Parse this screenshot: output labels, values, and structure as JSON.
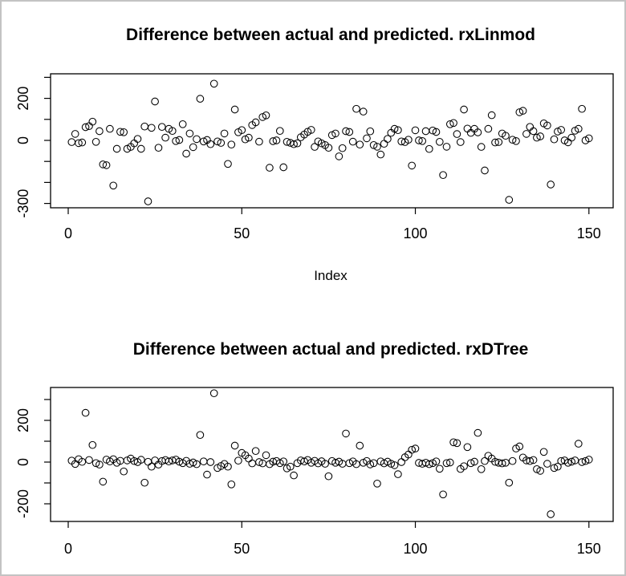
{
  "window": {
    "background": "#ffffff",
    "frame_border_color": "#c3c3c3",
    "foreground_color": "#000000"
  },
  "chart_data": [
    {
      "type": "scatter",
      "title": "Difference between actual and predicted. rxLinmod",
      "xlabel": "Index",
      "ylabel": "",
      "marker": "open-circle",
      "point_color": "#000000",
      "grid": false,
      "legend": "none",
      "x_description": "observation index 1..150",
      "xlim": [
        -5,
        156
      ],
      "ylim": [
        -320,
        317
      ],
      "x_ticks": [
        0,
        50,
        100,
        150
      ],
      "y_ticks": [
        {
          "v": 300,
          "label": ""
        },
        {
          "v": 200,
          "label": "200"
        },
        {
          "v": 100,
          "label": ""
        },
        {
          "v": 0,
          "label": "0"
        },
        {
          "v": -100,
          "label": ""
        },
        {
          "v": -200,
          "label": ""
        },
        {
          "v": -300,
          "label": "-300"
        }
      ],
      "values": [
        -8,
        31,
        -13,
        -10,
        63,
        68,
        89,
        -7,
        44,
        -114,
        -118,
        55,
        -215,
        -40,
        41,
        39,
        -40,
        -31,
        -14,
        7,
        -40,
        66,
        -290,
        60,
        185,
        -35,
        64,
        13,
        55,
        45,
        -3,
        2,
        77,
        -63,
        33,
        -32,
        6,
        198,
        -5,
        2,
        -18,
        270,
        -5,
        -12,
        33,
        -112,
        -20,
        147,
        39,
        49,
        5,
        13,
        73,
        86,
        -6,
        111,
        119,
        -130,
        -4,
        0,
        45,
        -128,
        -7,
        -12,
        -18,
        -14,
        15,
        28,
        41,
        50,
        -31,
        -5,
        -14,
        -22,
        -35,
        25,
        33,
        -76,
        -37,
        44,
        40,
        -6,
        150,
        -20,
        137,
        10,
        43,
        -22,
        -30,
        -67,
        -16,
        7,
        36,
        55,
        49,
        -5,
        -8,
        3,
        -120,
        48,
        0,
        -3,
        44,
        -41,
        47,
        40,
        -7,
        -165,
        -30,
        77,
        83,
        30,
        -8,
        147,
        56,
        36,
        55,
        38,
        -31,
        -143,
        55,
        120,
        -10,
        -8,
        33,
        22,
        -283,
        3,
        -3,
        134,
        141,
        31,
        64,
        44,
        13,
        19,
        81,
        71,
        -210,
        5,
        42,
        50,
        0,
        -9,
        13,
        46,
        55,
        150,
        0,
        10
      ]
    },
    {
      "type": "scatter",
      "title": "Difference between actual and predicted. rxDTree",
      "xlabel": "",
      "ylabel": "",
      "marker": "open-circle",
      "point_color": "#000000",
      "grid": false,
      "legend": "none",
      "x_description": "observation index 1..150",
      "xlim": [
        -5,
        156
      ],
      "ylim": [
        -284,
        357
      ],
      "x_ticks": [
        0,
        50,
        100,
        150
      ],
      "y_ticks": [
        {
          "v": 300,
          "label": ""
        },
        {
          "v": 200,
          "label": "200"
        },
        {
          "v": 100,
          "label": ""
        },
        {
          "v": 0,
          "label": "0"
        },
        {
          "v": -100,
          "label": ""
        },
        {
          "v": -200,
          "label": "-200"
        }
      ],
      "values": [
        7,
        -9,
        14,
        1,
        236,
        10,
        82,
        -5,
        -12,
        -94,
        12,
        3,
        14,
        -3,
        6,
        -45,
        8,
        17,
        5,
        0,
        11,
        -99,
        1,
        -22,
        8,
        -12,
        5,
        10,
        3,
        8,
        12,
        2,
        -5,
        6,
        -8,
        -2,
        -10,
        130,
        3,
        -60,
        0,
        330,
        -28,
        -19,
        -9,
        -22,
        -107,
        79,
        7,
        44,
        33,
        17,
        -6,
        53,
        0,
        -6,
        33,
        -10,
        2,
        5,
        -5,
        3,
        -30,
        -22,
        -64,
        -5,
        8,
        3,
        10,
        -3,
        6,
        -6,
        4,
        -8,
        -68,
        5,
        -3,
        2,
        -8,
        137,
        -5,
        3,
        -10,
        79,
        -3,
        5,
        -11,
        -5,
        -103,
        3,
        -6,
        2,
        -8,
        -15,
        -58,
        0,
        23,
        36,
        59,
        65,
        -4,
        -8,
        -3,
        -10,
        -5,
        3,
        -32,
        -155,
        -5,
        -2,
        95,
        91,
        -33,
        -20,
        72,
        -5,
        2,
        140,
        -34,
        5,
        30,
        17,
        1,
        -3,
        -6,
        -3,
        -99,
        5,
        65,
        75,
        22,
        8,
        5,
        10,
        -34,
        -42,
        49,
        -8,
        -250,
        -28,
        -22,
        5,
        8,
        -3,
        2,
        8,
        88,
        0,
        5,
        12
      ]
    }
  ]
}
